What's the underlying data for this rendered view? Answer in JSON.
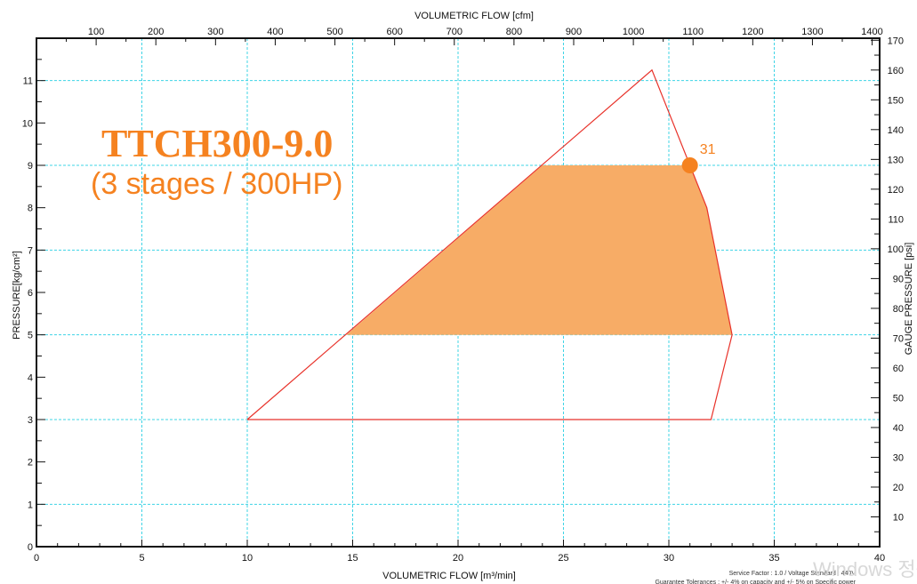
{
  "chart_data": {
    "type": "area",
    "title": "TTCH300-9.0",
    "subtitle": "(3 stages / 300HP)",
    "xlabel": "VOLUMETRIC FLOW [m³/min]",
    "ylabel": "PRESSURE[kg/cm²]",
    "x2label": "VOLUMETRIC FLOW [cfm]",
    "y2label": "GAUGE PRESSURE [psi]",
    "xlim": [
      0,
      40
    ],
    "ylim": [
      0,
      12
    ],
    "x_ticks": [
      0,
      5,
      10,
      15,
      20,
      25,
      30,
      35,
      40
    ],
    "y_ticks": [
      0,
      1,
      2,
      3,
      4,
      5,
      6,
      7,
      8,
      9,
      10,
      11
    ],
    "x2_ticks": [
      100,
      200,
      300,
      400,
      500,
      600,
      700,
      800,
      900,
      1000,
      1100,
      1200,
      1300,
      1400
    ],
    "y2_ticks": [
      10,
      20,
      30,
      40,
      50,
      60,
      70,
      80,
      90,
      100,
      110,
      120,
      130,
      140,
      150,
      160,
      170
    ],
    "grid": true,
    "series": [
      {
        "name": "",
        "kind": "envelope",
        "color": "#e8322a",
        "points": [
          [
            10,
            3
          ],
          [
            29.2,
            11.25
          ],
          [
            31,
            9
          ],
          [
            31.8,
            8
          ],
          [
            33,
            5
          ],
          [
            32,
            3
          ],
          [
            10,
            3
          ]
        ]
      },
      {
        "name": "",
        "kind": "operating-area",
        "color": "#f7ac66",
        "points": [
          [
            14.7,
            5
          ],
          [
            24,
            9
          ],
          [
            31,
            9
          ],
          [
            31.8,
            8
          ],
          [
            33,
            5
          ]
        ]
      }
    ],
    "annotations": [
      {
        "label": "31",
        "x": 31,
        "y": 9,
        "color": "#f58220"
      }
    ]
  },
  "footer": {
    "line1": "Service Factor : 1.0 / Voltage Standard : 440V",
    "line2": "Guarantee Tolerances : +/- 4% on capacity and +/- 5% on Specific power"
  },
  "watermark": "Windows 정품",
  "colors": {
    "grid": "#3fd4e6",
    "envelope": "#e8322a",
    "fill": "#f7ac66",
    "title": "#f58220",
    "marker": "#f58220"
  }
}
